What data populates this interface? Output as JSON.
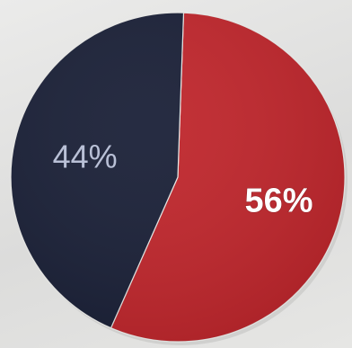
{
  "chart_data": {
    "type": "pie",
    "series": [
      {
        "values": [
          56,
          44
        ],
        "labels": [
          "56%",
          "44%"
        ],
        "colors": [
          "#c0272d",
          "#1b2138"
        ]
      }
    ]
  }
}
